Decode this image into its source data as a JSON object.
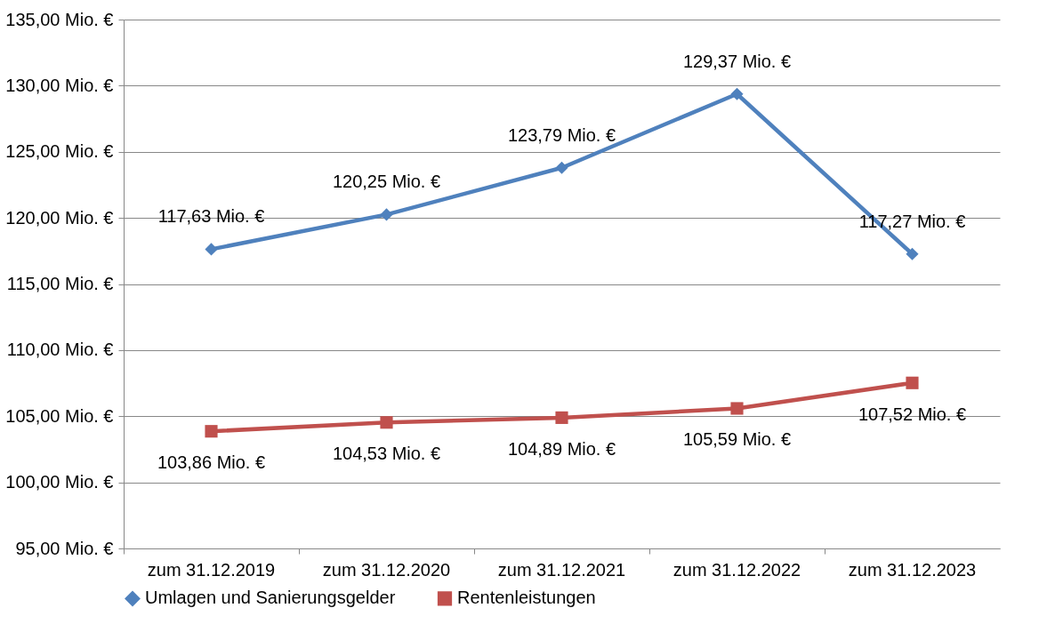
{
  "chart_data": {
    "type": "line",
    "categories": [
      "zum 31.12.2019",
      "zum 31.12.2020",
      "zum 31.12.2021",
      "zum 31.12.2022",
      "zum 31.12.2023"
    ],
    "series": [
      {
        "name": "Umlagen und Sanierungsgelder",
        "color": "#4f81bd",
        "marker": "diamond",
        "values": [
          117.63,
          120.25,
          123.79,
          129.37,
          117.27
        ],
        "value_labels": [
          "117,63 Mio. €",
          "120,25 Mio. €",
          "123,79 Mio. €",
          "129,37 Mio. €",
          "117,27 Mio. €"
        ]
      },
      {
        "name": "Rentenleistungen",
        "color": "#c0504d",
        "marker": "square",
        "values": [
          103.86,
          104.53,
          104.89,
          105.59,
          107.52
        ],
        "value_labels": [
          "103,86 Mio. €",
          "104,53 Mio. €",
          "104,89 Mio. €",
          "105,59 Mio. €",
          "107,52 Mio. €"
        ]
      }
    ],
    "ylim": [
      95,
      135
    ],
    "yticks": [
      {
        "value": 95,
        "label": "95,00 Mio. €"
      },
      {
        "value": 100,
        "label": "100,00 Mio. €"
      },
      {
        "value": 105,
        "label": "105,00 Mio. €"
      },
      {
        "value": 110,
        "label": "110,00 Mio. €"
      },
      {
        "value": 115,
        "label": "115,00 Mio. €"
      },
      {
        "value": 120,
        "label": "120,00 Mio. €"
      },
      {
        "value": 125,
        "label": "125,00 Mio. €"
      },
      {
        "value": 130,
        "label": "130,00 Mio. €"
      },
      {
        "value": 135,
        "label": "135,00 Mio. €"
      }
    ],
    "grid": "y",
    "legend": "bottom",
    "line_style": "solid"
  }
}
